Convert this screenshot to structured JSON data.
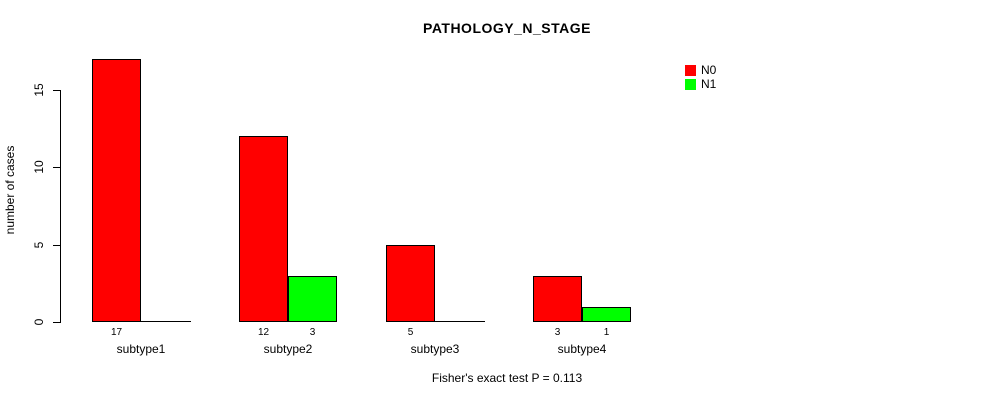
{
  "chart_data": {
    "type": "bar",
    "title": "PATHOLOGY_N_STAGE",
    "ylabel": "number of cases",
    "xlabel": "",
    "categories": [
      "subtype1",
      "subtype2",
      "subtype3",
      "subtype4"
    ],
    "series": [
      {
        "name": "N0",
        "color": "#ff0000",
        "values": [
          17,
          12,
          5,
          3
        ]
      },
      {
        "name": "N1",
        "color": "#00ff00",
        "values": [
          0,
          3,
          0,
          1
        ]
      }
    ],
    "bar_value_labels": {
      "N0": [
        "17",
        "12",
        "5",
        "3"
      ],
      "N1": [
        "",
        "3",
        "",
        "1"
      ]
    },
    "yticks": [
      0,
      5,
      10,
      15
    ],
    "ylim": [
      0,
      17.6
    ],
    "grid": false,
    "legend_position": "top-right",
    "bar_border_color": "#000000",
    "annotation": "Fisher's exact test P = 0.113"
  }
}
